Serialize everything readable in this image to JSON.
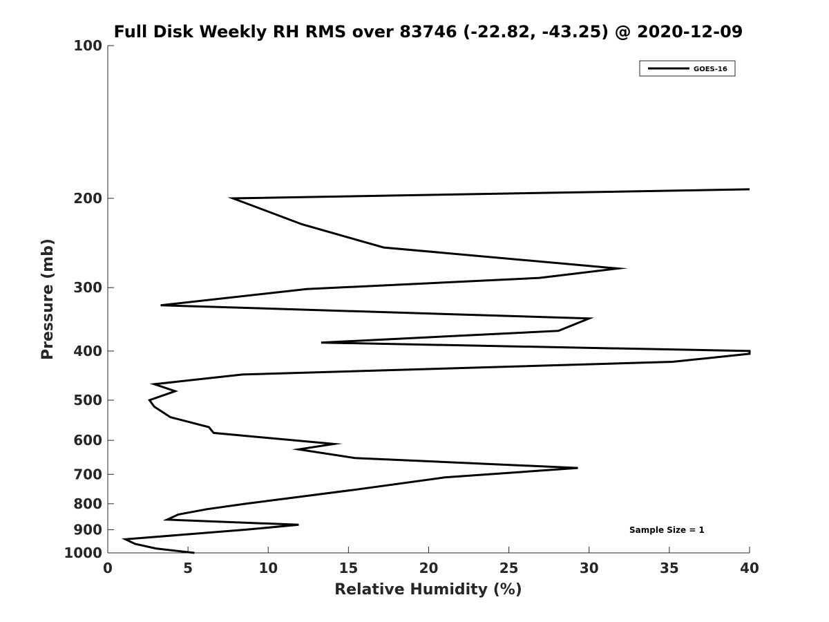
{
  "chart_data": {
    "type": "line",
    "title": "Full Disk Weekly RH RMS over 83746 (-22.82, -43.25) @ 2020-12-09",
    "xlabel": "Relative Humidity (%)",
    "ylabel": "Pressure (mb)",
    "xlim": [
      0,
      40
    ],
    "ylim": [
      100,
      1000
    ],
    "yscale": "log",
    "y_reversed": true,
    "grid": false,
    "legend_position": "top-right",
    "x_ticks": [
      "0",
      "5",
      "10",
      "15",
      "20",
      "25",
      "30",
      "35",
      "40"
    ],
    "y_ticks": [
      "100",
      "200",
      "300",
      "400",
      "500",
      "600",
      "700",
      "800",
      "900",
      "1000"
    ],
    "annotation": "Sample Size = 1",
    "series": [
      {
        "name": "GOES-16",
        "color": "#000000",
        "x": [
          40.0,
          7.8,
          12.1,
          17.2,
          31.8,
          26.9,
          12.4,
          3.3,
          30.0,
          28.1,
          13.3,
          40.0,
          40.0,
          35.2,
          8.4,
          2.9,
          4.2,
          2.6,
          2.9,
          3.9,
          6.3,
          6.6,
          14.1,
          11.9,
          15.4,
          29.3,
          21.0,
          15.5,
          8.6,
          6.2,
          4.4,
          3.7,
          11.9,
          8.6,
          1.1,
          1.7,
          3.0,
          5.4
        ],
        "y": [
          192,
          200,
          225,
          250,
          275,
          287,
          302,
          325,
          345,
          365,
          385,
          400,
          405,
          420,
          445,
          465,
          480,
          500,
          515,
          540,
          565,
          580,
          610,
          625,
          650,
          680,
          710,
          750,
          800,
          820,
          840,
          860,
          880,
          900,
          940,
          960,
          980,
          1000
        ]
      }
    ]
  }
}
